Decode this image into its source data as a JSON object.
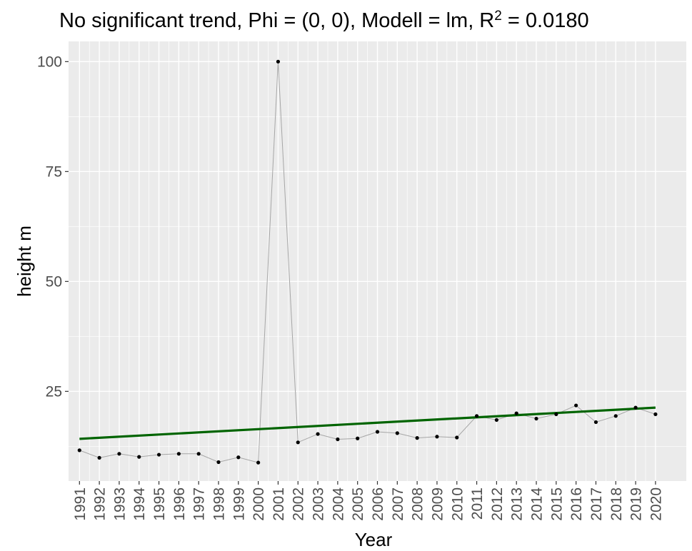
{
  "chart_data": {
    "type": "line",
    "title": "No significant trend, Phi = (0, 0), Modell = lm, R",
    "title_sup": "2",
    "title_end": " = 0.0180",
    "xlabel": "Year",
    "ylabel": "height m",
    "x": [
      1991,
      1992,
      1993,
      1994,
      1995,
      1996,
      1997,
      1998,
      1999,
      2000,
      2001,
      2002,
      2003,
      2004,
      2005,
      2006,
      2007,
      2008,
      2009,
      2010,
      2011,
      2012,
      2013,
      2014,
      2015,
      2016,
      2017,
      2018,
      2019,
      2020
    ],
    "x_tick_labels": [
      "1991",
      "1992",
      "1993",
      "1994",
      "1995",
      "1996",
      "1997",
      "1998",
      "1999",
      "2000",
      "2001",
      "2002",
      "2003",
      "2004",
      "2005",
      "2006",
      "2007",
      "2008",
      "2009",
      "2010",
      "2011",
      "2012",
      "2013",
      "2014",
      "2015",
      "2016",
      "2017",
      "2018",
      "2019",
      "2020"
    ],
    "y_ticks": [
      25,
      50,
      75,
      100
    ],
    "y_tick_labels": [
      "25",
      "50",
      "75",
      "100"
    ],
    "xlim": [
      1990.45,
      2021.55
    ],
    "ylim": [
      4.6,
      104.6
    ],
    "grid": true,
    "series": [
      {
        "values": [
          11.6,
          9.9,
          10.8,
          10.1,
          10.6,
          10.8,
          10.8,
          8.9,
          10.0,
          8.8,
          100.0,
          13.4,
          15.3,
          14.1,
          14.3,
          15.8,
          15.5,
          14.4,
          14.7,
          14.5,
          19.4,
          18.5,
          20.0,
          18.8,
          19.8,
          21.8,
          18.0,
          19.4,
          21.3,
          19.8
        ],
        "line_color": "#a6a6a6",
        "point_color": "#000000"
      }
    ],
    "trend": {
      "type": "lm",
      "x": [
        1991,
        2020
      ],
      "y": [
        14.2,
        21.3
      ],
      "color": "#006400"
    },
    "panel_color": "#ebebeb",
    "grid_color": "#ffffff"
  }
}
